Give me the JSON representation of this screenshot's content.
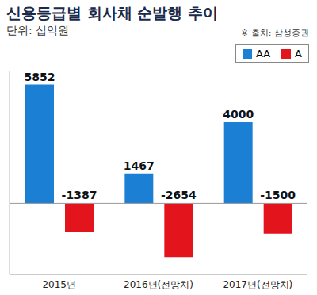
{
  "chart_data": {
    "type": "bar",
    "title": "신용등급별 회사채 순발행 추이",
    "subtitle": "단위: 십억원",
    "annotations": [
      "※ 출처: 삼성증권"
    ],
    "categories": [
      "2015년",
      "2016년(전망치)",
      "2017년(전망치)"
    ],
    "series": [
      {
        "name": "AA",
        "color": "#1b7fd4",
        "values": [
          5852,
          1467,
          4000
        ]
      },
      {
        "name": "A",
        "color": "#e3141c",
        "values": [
          -1387,
          -2654,
          -1500
        ]
      }
    ],
    "ylim": [
      -3500,
      6500
    ],
    "data_labels": true,
    "legend": "top-right",
    "tick_labels": "x",
    "grid": false
  }
}
